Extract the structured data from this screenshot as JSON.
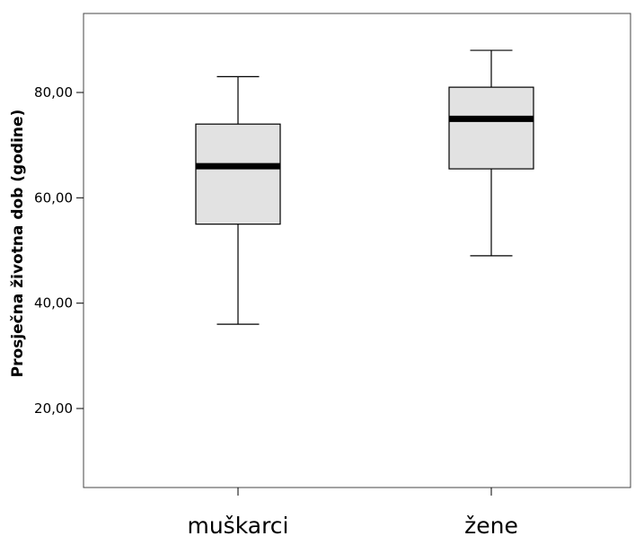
{
  "chart_data": {
    "type": "boxplot",
    "title": "",
    "xlabel": "",
    "ylabel": "Prosječna životna dob (godine)",
    "categories": [
      "muškarci",
      "žene"
    ],
    "boxes": [
      {
        "category": "muškarci",
        "min": 36,
        "q1": 55,
        "median": 66,
        "q3": 74,
        "max": 83
      },
      {
        "category": "žene",
        "min": 49,
        "q1": 65.5,
        "median": 75,
        "q3": 81,
        "max": 88
      }
    ],
    "ylim": [
      5,
      95
    ],
    "yticks": [
      20,
      40,
      60,
      80
    ],
    "ytick_labels": [
      "20,00",
      "40,00",
      "60,00",
      "80,00"
    ],
    "grid": false,
    "legend": "none",
    "colors": {
      "box_fill": "#e2e2e2",
      "stroke": "#000000",
      "median": "#000000",
      "frame": "#444444"
    }
  }
}
